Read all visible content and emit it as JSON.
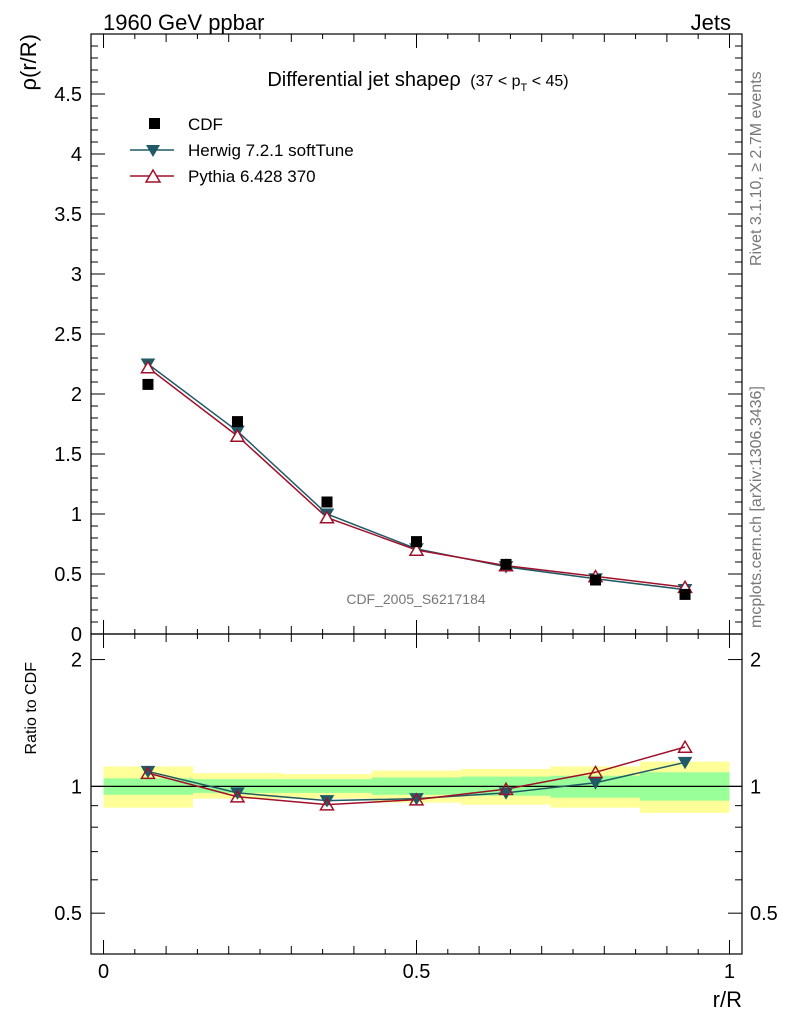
{
  "header": {
    "left": "1960 GeV ppbar",
    "right": "Jets"
  },
  "side_labels": {
    "rivet": "Rivet 3.1.10, ≥ 2.7M events",
    "mcplots": "mcplots.cern.ch [arXiv:1306.3436]"
  },
  "watermark": "CDF_2005_S6217184",
  "colors": {
    "herwig": "#1f5a66",
    "pythia": "#a0102a",
    "cdf": "#000000",
    "band_inner": "#99ff99",
    "band_outer": "#ffff99"
  },
  "chart_data": [
    {
      "type": "scatter",
      "title": "Differential jet shapeρ",
      "subtitle_parts": [
        "(37 < p",
        "T",
        " < 45)"
      ],
      "xlabel": "r/R",
      "ylabel": "ρ(r/R)",
      "xlim": [
        -0.02,
        1.02
      ],
      "ylim": [
        0,
        5.0
      ],
      "yticks": [
        0,
        0.5,
        1,
        1.5,
        2,
        2.5,
        3,
        3.5,
        4,
        4.5
      ],
      "ytick_labels": [
        "0",
        "0.5",
        "1",
        "1.5",
        "2",
        "2.5",
        "3",
        "3.5",
        "4",
        "4.5"
      ],
      "x": [
        0.071,
        0.214,
        0.357,
        0.5,
        0.643,
        0.786,
        0.929
      ],
      "series": [
        {
          "name": "CDF",
          "marker": "square",
          "values": [
            2.08,
            1.77,
            1.1,
            0.77,
            0.58,
            0.45,
            0.33
          ]
        },
        {
          "name": "Herwig 7.2.1 softTune",
          "marker": "triangle-down",
          "values": [
            2.25,
            1.69,
            1.0,
            0.71,
            0.56,
            0.46,
            0.37
          ]
        },
        {
          "name": "Pythia 6.428 370",
          "marker": "triangle-up-open",
          "values": [
            2.22,
            1.65,
            0.97,
            0.7,
            0.57,
            0.48,
            0.39
          ]
        }
      ],
      "legend": [
        "CDF",
        "Herwig 7.2.1 softTune",
        "Pythia 6.428 370"
      ],
      "legend_position": "top-left"
    },
    {
      "type": "line",
      "ylabel": "Ratio to CDF",
      "xlabel": "r/R",
      "xlim": [
        -0.02,
        1.02
      ],
      "ylim": [
        0.4,
        2.3
      ],
      "yscale": "log",
      "yticks": [
        0.5,
        1,
        2
      ],
      "ytick_labels": [
        "0.5",
        "1",
        "2"
      ],
      "xticks": [
        0,
        0.5,
        1
      ],
      "xtick_labels": [
        "0",
        "0.5",
        "1"
      ],
      "x": [
        0.071,
        0.214,
        0.357,
        0.5,
        0.643,
        0.786,
        0.929
      ],
      "bins": [
        [
          0.0,
          0.143
        ],
        [
          0.143,
          0.286
        ],
        [
          0.286,
          0.429
        ],
        [
          0.429,
          0.571
        ],
        [
          0.571,
          0.714
        ],
        [
          0.714,
          0.857
        ],
        [
          0.857,
          1.0
        ]
      ],
      "band_inner": [
        [
          0.955,
          1.045
        ],
        [
          0.965,
          1.04
        ],
        [
          0.965,
          1.04
        ],
        [
          0.955,
          1.05
        ],
        [
          0.95,
          1.055
        ],
        [
          0.94,
          1.06
        ],
        [
          0.925,
          1.08
        ]
      ],
      "band_outer": [
        [
          0.89,
          1.115
        ],
        [
          0.935,
          1.075
        ],
        [
          0.935,
          1.07
        ],
        [
          0.915,
          1.09
        ],
        [
          0.905,
          1.1
        ],
        [
          0.89,
          1.115
        ],
        [
          0.865,
          1.145
        ]
      ],
      "series": [
        {
          "name": "Herwig 7.2.1 softTune",
          "values": [
            1.085,
            0.965,
            0.925,
            0.935,
            0.965,
            1.02,
            1.14
          ]
        },
        {
          "name": "Pythia 6.428 370",
          "values": [
            1.075,
            0.945,
            0.905,
            0.93,
            0.985,
            1.08,
            1.24
          ]
        }
      ]
    }
  ]
}
